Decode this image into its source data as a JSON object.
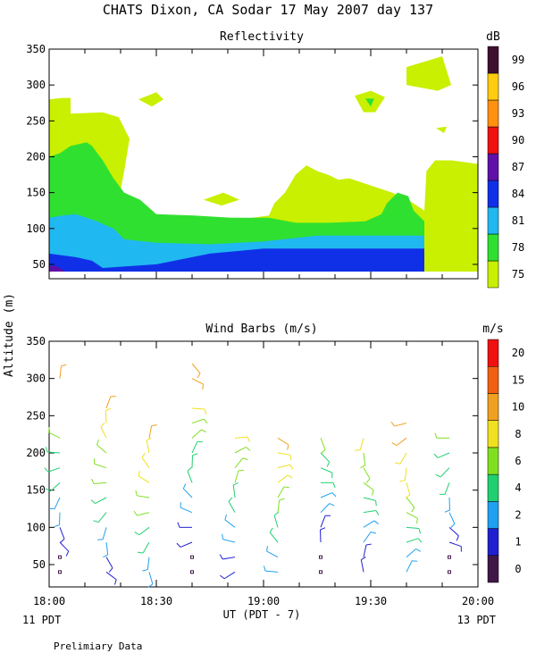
{
  "title": "CHATS Dixon, CA  Sodar  17 May 2007  day 137",
  "footer_note": "Prelimiary Data",
  "shared_ylabel": "Altitude (m)",
  "chart_data": [
    {
      "type": "heatmap",
      "title": "Reflectivity",
      "ylim": [
        30,
        350
      ],
      "yticks": [
        "50",
        "100",
        "150",
        "200",
        "250",
        "300",
        "350"
      ],
      "unit_label": "dB",
      "legend": {
        "placement": "right",
        "labels": [
          "75",
          "78",
          "81",
          "84",
          "87",
          "90",
          "93",
          "96",
          "99"
        ],
        "colors": [
          "#c8f000",
          "#30e030",
          "#20b8f0",
          "#1030e8",
          "#6010a8",
          "#f01010",
          "#ff9010",
          "#ffcc10",
          "#401030"
        ]
      },
      "levels": [
        {
          "value": "75",
          "color": "#c8f000",
          "area": [
            [
              0,
              280
            ],
            [
              12,
              282
            ],
            [
              20,
              282
            ],
            [
              20,
              260
            ],
            [
              50,
              262
            ],
            [
              65,
              255
            ],
            [
              75,
              225
            ],
            [
              70,
              180
            ],
            [
              65,
              140
            ],
            [
              80,
              135
            ],
            [
              100,
              120
            ],
            [
              125,
              115
            ],
            [
              150,
              112
            ],
            [
              175,
              112
            ],
            [
              205,
              118
            ],
            [
              210,
              135
            ],
            [
              220,
              150
            ],
            [
              230,
              175
            ],
            [
              240,
              188
            ],
            [
              250,
              180
            ],
            [
              260,
              175
            ],
            [
              270,
              168
            ],
            [
              280,
              170
            ],
            [
              300,
              160
            ],
            [
              320,
              150
            ],
            [
              335,
              140
            ],
            [
              350,
              125
            ],
            [
              352,
              180
            ],
            [
              360,
              195
            ],
            [
              375,
              195
            ],
            [
              400,
              190
            ],
            [
              400,
              80
            ],
            [
              0,
              80
            ]
          ]
        },
        {
          "value": "78",
          "color": "#30e030",
          "area": [
            [
              0,
              200
            ],
            [
              10,
              205
            ],
            [
              20,
              215
            ],
            [
              35,
              220
            ],
            [
              40,
              215
            ],
            [
              45,
              205
            ],
            [
              50,
              195
            ],
            [
              60,
              170
            ],
            [
              70,
              150
            ],
            [
              85,
              140
            ],
            [
              100,
              120
            ],
            [
              135,
              118
            ],
            [
              170,
              115
            ],
            [
              205,
              115
            ],
            [
              230,
              108
            ],
            [
              260,
              108
            ],
            [
              295,
              110
            ],
            [
              310,
              120
            ],
            [
              315,
              135
            ],
            [
              325,
              150
            ],
            [
              335,
              145
            ],
            [
              340,
              125
            ],
            [
              350,
              110
            ],
            [
              350,
              80
            ],
            [
              0,
              80
            ]
          ]
        },
        {
          "value": "81",
          "color": "#20b8f0",
          "area": [
            [
              0,
              115
            ],
            [
              12,
              118
            ],
            [
              25,
              120
            ],
            [
              35,
              115
            ],
            [
              45,
              110
            ],
            [
              52,
              105
            ],
            [
              60,
              100
            ],
            [
              70,
              85
            ],
            [
              100,
              80
            ],
            [
              150,
              78
            ],
            [
              200,
              82
            ],
            [
              250,
              90
            ],
            [
              300,
              90
            ],
            [
              350,
              90
            ],
            [
              350,
              40
            ],
            [
              0,
              40
            ]
          ]
        },
        {
          "value": "84",
          "color": "#1030e8",
          "area": [
            [
              0,
              65
            ],
            [
              25,
              60
            ],
            [
              40,
              55
            ],
            [
              50,
              45
            ],
            [
              100,
              50
            ],
            [
              150,
              65
            ],
            [
              200,
              72
            ],
            [
              250,
              72
            ],
            [
              300,
              72
            ],
            [
              350,
              72
            ],
            [
              350,
              40
            ],
            [
              0,
              40
            ]
          ]
        },
        {
          "value": "87",
          "color": "#6010a8",
          "area": [
            [
              0,
              47
            ],
            [
              5,
              48
            ],
            [
              10,
              45
            ],
            [
              15,
              40
            ],
            [
              0,
              40
            ]
          ]
        }
      ]
    },
    {
      "type": "scatter",
      "title": "Wind Barbs (m/s)",
      "ylim": [
        20,
        350
      ],
      "yticks": [
        "50",
        "100",
        "150",
        "200",
        "250",
        "300",
        "350"
      ],
      "xticks": [
        "18:00",
        "18:30",
        "19:00",
        "19:30",
        "20:00"
      ],
      "xlabel": "UT  (PDT - 7)",
      "left_bottom_label": "11 PDT",
      "right_bottom_label": "13 PDT",
      "unit_label": "m/s",
      "legend": {
        "placement": "right",
        "labels": [
          "0",
          "1",
          "2",
          "4",
          "6",
          "8",
          "10",
          "15",
          "20"
        ],
        "colors": [
          "#401848",
          "#2020d0",
          "#20a0f0",
          "#20d070",
          "#80e020",
          "#f0e020",
          "#f0a020",
          "#f06010",
          "#f01010"
        ]
      },
      "time_columns_min": [
        3,
        16,
        28,
        40,
        52,
        64,
        76,
        88,
        100,
        112
      ],
      "altitudes_m": [
        40,
        60,
        80,
        100,
        120,
        140,
        160,
        180,
        200,
        220,
        240,
        260,
        300,
        320
      ]
    }
  ]
}
